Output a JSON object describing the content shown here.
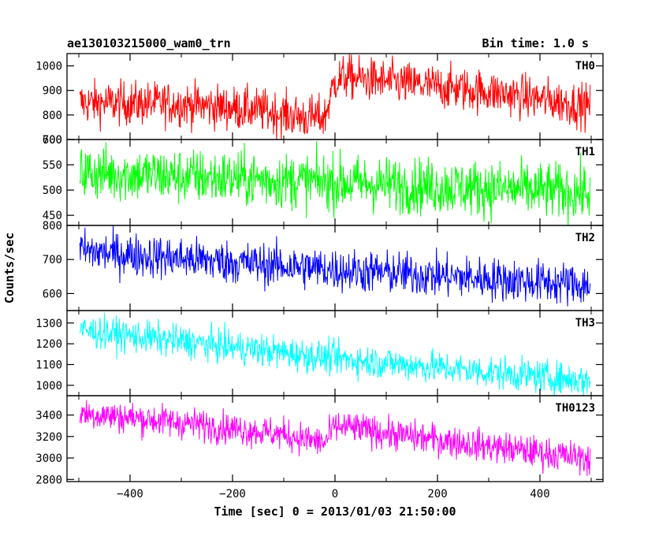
{
  "header": {
    "left_title": "ae130103215000_wam0_trn",
    "right_title": "Bin time: 1.0 s"
  },
  "chart_data": {
    "type": "line",
    "xlabel": "Time [sec] 0 = 2013/01/03 21:50:00",
    "ylabel": "Counts/sec",
    "xlim": [
      -500,
      500
    ],
    "x_ticks": [
      -400,
      -200,
      0,
      200,
      400
    ],
    "x_tick_labels": [
      "−400",
      "−200",
      "0",
      "200",
      "400"
    ],
    "panels": [
      {
        "name": "TH0",
        "color": "#ff0000",
        "ylim": [
          700,
          1050
        ],
        "y_ticks": [
          700,
          800,
          900,
          1000
        ],
        "y_tick_labels": [
          "700",
          "800",
          "900",
          "1000"
        ],
        "trend": {
          "x": [
            -500,
            -300,
            -150,
            -60,
            -20,
            0,
            20,
            100,
            300,
            500
          ],
          "y": [
            850,
            845,
            820,
            790,
            790,
            940,
            955,
            935,
            895,
            835
          ]
        },
        "noise_amplitude": 45
      },
      {
        "name": "TH1",
        "color": "#00ff00",
        "ylim": [
          430,
          600
        ],
        "y_ticks": [
          450,
          500,
          550,
          600
        ],
        "y_tick_labels": [
          "450",
          "500",
          "550",
          "600"
        ],
        "trend": {
          "x": [
            -500,
            0,
            500
          ],
          "y": [
            535,
            515,
            495
          ]
        },
        "noise_amplitude": 28
      },
      {
        "name": "TH2",
        "color": "#0000ff",
        "ylim": [
          550,
          800
        ],
        "y_ticks": [
          600,
          700,
          800
        ],
        "y_tick_labels": [
          "600",
          "700",
          "800"
        ],
        "trend": {
          "x": [
            -500,
            0,
            500
          ],
          "y": [
            725,
            670,
            625
          ]
        },
        "noise_amplitude": 32
      },
      {
        "name": "TH3",
        "color": "#00ffff",
        "ylim": [
          950,
          1360
        ],
        "y_ticks": [
          1000,
          1100,
          1200,
          1300
        ],
        "y_tick_labels": [
          "1000",
          "1100",
          "1200",
          "1300"
        ],
        "trend": {
          "x": [
            -500,
            0,
            500
          ],
          "y": [
            1265,
            1130,
            1020
          ]
        },
        "noise_amplitude": 40
      },
      {
        "name": "TH0123",
        "color": "#ff00ff",
        "ylim": [
          2780,
          3580
        ],
        "y_ticks": [
          2800,
          3000,
          3200,
          3400
        ],
        "y_tick_labels": [
          "2800",
          "3000",
          "3200",
          "3400"
        ],
        "trend": {
          "x": [
            -500,
            -300,
            -100,
            -20,
            0,
            20,
            100,
            300,
            500
          ],
          "y": [
            3420,
            3330,
            3220,
            3140,
            3290,
            3290,
            3230,
            3110,
            2990
          ]
        },
        "noise_amplitude": 75
      }
    ]
  }
}
